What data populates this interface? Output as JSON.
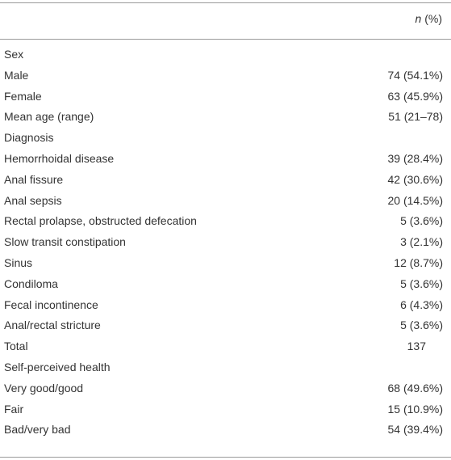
{
  "header": {
    "n_label": "n",
    "pct_label": " (%)"
  },
  "rows": [
    {
      "label": "Sex",
      "value": ""
    },
    {
      "label": "Male",
      "value": "74 (54.1%)"
    },
    {
      "label": "Female",
      "value": "63 (45.9%)"
    },
    {
      "label": "Mean age (range)",
      "value": "51 (21–78)"
    },
    {
      "label": "Diagnosis",
      "value": ""
    },
    {
      "label": "Hemorrhoidal disease",
      "value": "39 (28.4%)"
    },
    {
      "label": "Anal fissure",
      "value": "42 (30.6%)"
    },
    {
      "label": "Anal sepsis",
      "value": "20 (14.5%)"
    },
    {
      "label": "Rectal prolapse, obstructed defecation",
      "value": "5 (3.6%)"
    },
    {
      "label": "Slow transit constipation",
      "value": "3 (2.1%)"
    },
    {
      "label": "Sinus",
      "value": "12 (8.7%)"
    },
    {
      "label": "Condiloma",
      "value": "5 (3.6%)"
    },
    {
      "label": "Fecal incontinence",
      "value": "6 (4.3%)"
    },
    {
      "label": "Anal/rectal stricture",
      "value": "5 (3.6%)"
    },
    {
      "label": "Total",
      "value": "137"
    },
    {
      "label": "Self-perceived health",
      "value": ""
    },
    {
      "label": "Very good/good",
      "value": "68 (49.6%)"
    },
    {
      "label": "Fair",
      "value": "15 (10.9%)"
    },
    {
      "label": "Bad/very bad",
      "value": "54 (39.4%)"
    }
  ]
}
